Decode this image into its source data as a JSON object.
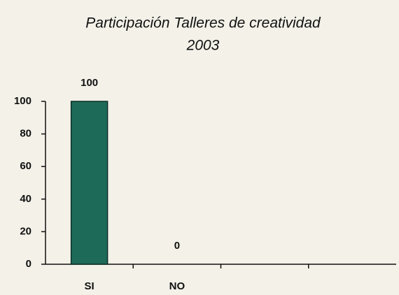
{
  "chart_data": {
    "type": "bar",
    "title": "Participación Talleres de creatividad",
    "subtitle": "2003",
    "categories": [
      "SI",
      "NO",
      null,
      null
    ],
    "values": [
      100,
      0,
      null,
      null
    ],
    "color": "#1e6a58",
    "ylim": [
      0,
      100
    ],
    "yticks": [
      0,
      20,
      40,
      60,
      80,
      100
    ]
  }
}
